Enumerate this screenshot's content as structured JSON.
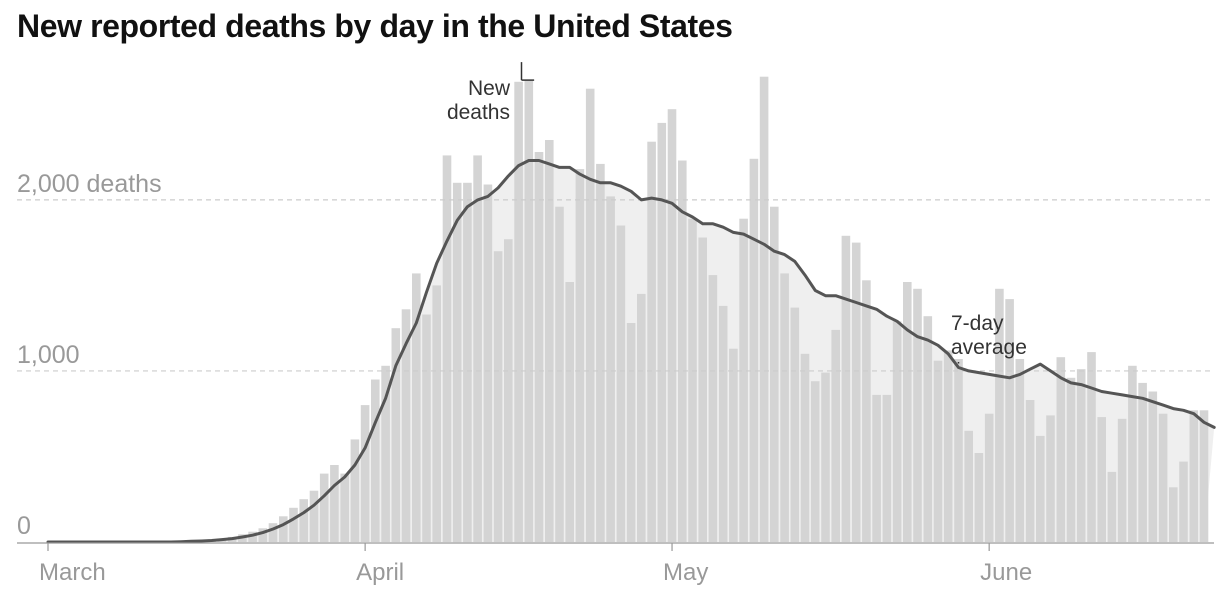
{
  "title": "New reported deaths by day in the United States",
  "chart_data": {
    "type": "bar",
    "title": "New reported deaths by day in the United States",
    "xlabel": "",
    "ylabel": "",
    "ylim": [
      0,
      2800
    ],
    "grid": true,
    "yticks": [
      {
        "value": 0,
        "label": "0"
      },
      {
        "value": 1000,
        "label": "1,000"
      },
      {
        "value": 2000,
        "label": "2,000 deaths"
      }
    ],
    "xticks": [
      {
        "date": "2020-03-01",
        "label": "March"
      },
      {
        "date": "2020-04-01",
        "label": "April"
      },
      {
        "date": "2020-05-01",
        "label": "May"
      },
      {
        "date": "2020-06-01",
        "label": "June"
      }
    ],
    "x_start": "2020-03-01",
    "x_end": "2020-06-15",
    "series": [
      {
        "name": "New deaths",
        "type": "bar",
        "color": "#d4d4d4",
        "values": [
          0,
          0,
          0,
          0,
          0,
          0,
          0,
          0,
          0,
          0,
          0,
          0,
          0,
          0,
          5,
          10,
          12,
          20,
          30,
          45,
          60,
          80,
          110,
          150,
          200,
          250,
          300,
          400,
          450,
          400,
          600,
          800,
          950,
          1030,
          1250,
          1360,
          1570,
          1330,
          1500,
          2260,
          2100,
          2100,
          2260,
          2090,
          1700,
          1770,
          2690,
          2700,
          2280,
          2350,
          1960,
          1520,
          2180,
          2650,
          2210,
          2020,
          1850,
          1280,
          1450,
          2340,
          2450,
          2530,
          2230,
          1890,
          1780,
          1560,
          1380,
          1130,
          1890,
          2240,
          2720,
          1960,
          1570,
          1370,
          1100,
          940,
          990,
          1240,
          1790,
          1750,
          1530,
          860,
          860,
          1290,
          1520,
          1480,
          1320,
          1060,
          1120,
          1070,
          650,
          520,
          750,
          1480,
          1420,
          1070,
          830,
          620,
          740,
          1080,
          960,
          1010,
          1110,
          730,
          410,
          720,
          1030,
          930,
          880,
          750,
          320,
          470,
          770,
          770
        ]
      },
      {
        "name": "7-day average",
        "type": "line",
        "color": "#555555",
        "values": [
          0,
          0,
          0,
          0,
          0,
          0,
          0,
          0,
          0,
          0,
          0,
          0,
          0,
          2,
          4,
          6,
          9,
          14,
          20,
          29,
          40,
          55,
          76,
          102,
          135,
          172,
          215,
          270,
          330,
          380,
          450,
          550,
          700,
          840,
          1030,
          1160,
          1280,
          1460,
          1630,
          1760,
          1880,
          1960,
          2000,
          2020,
          2070,
          2140,
          2200,
          2230,
          2230,
          2210,
          2190,
          2190,
          2150,
          2120,
          2100,
          2100,
          2080,
          2050,
          2000,
          2010,
          2000,
          1980,
          1930,
          1900,
          1860,
          1860,
          1840,
          1810,
          1800,
          1770,
          1740,
          1700,
          1680,
          1640,
          1560,
          1470,
          1440,
          1440,
          1420,
          1400,
          1380,
          1360,
          1320,
          1290,
          1240,
          1200,
          1180,
          1150,
          1100,
          1020,
          1000,
          990,
          980,
          970,
          960,
          980,
          1010,
          1040,
          1000,
          960,
          930,
          920,
          900,
          880,
          870,
          860,
          850,
          840,
          820,
          800,
          780,
          770,
          750,
          700,
          670
        ]
      }
    ],
    "annotations": [
      {
        "text": "New deaths",
        "lines": [
          "New",
          "deaths"
        ],
        "target_series": "New deaths"
      },
      {
        "text": "7-day average",
        "lines": [
          "7-day",
          "average"
        ],
        "target_series": "7-day average"
      }
    ]
  }
}
